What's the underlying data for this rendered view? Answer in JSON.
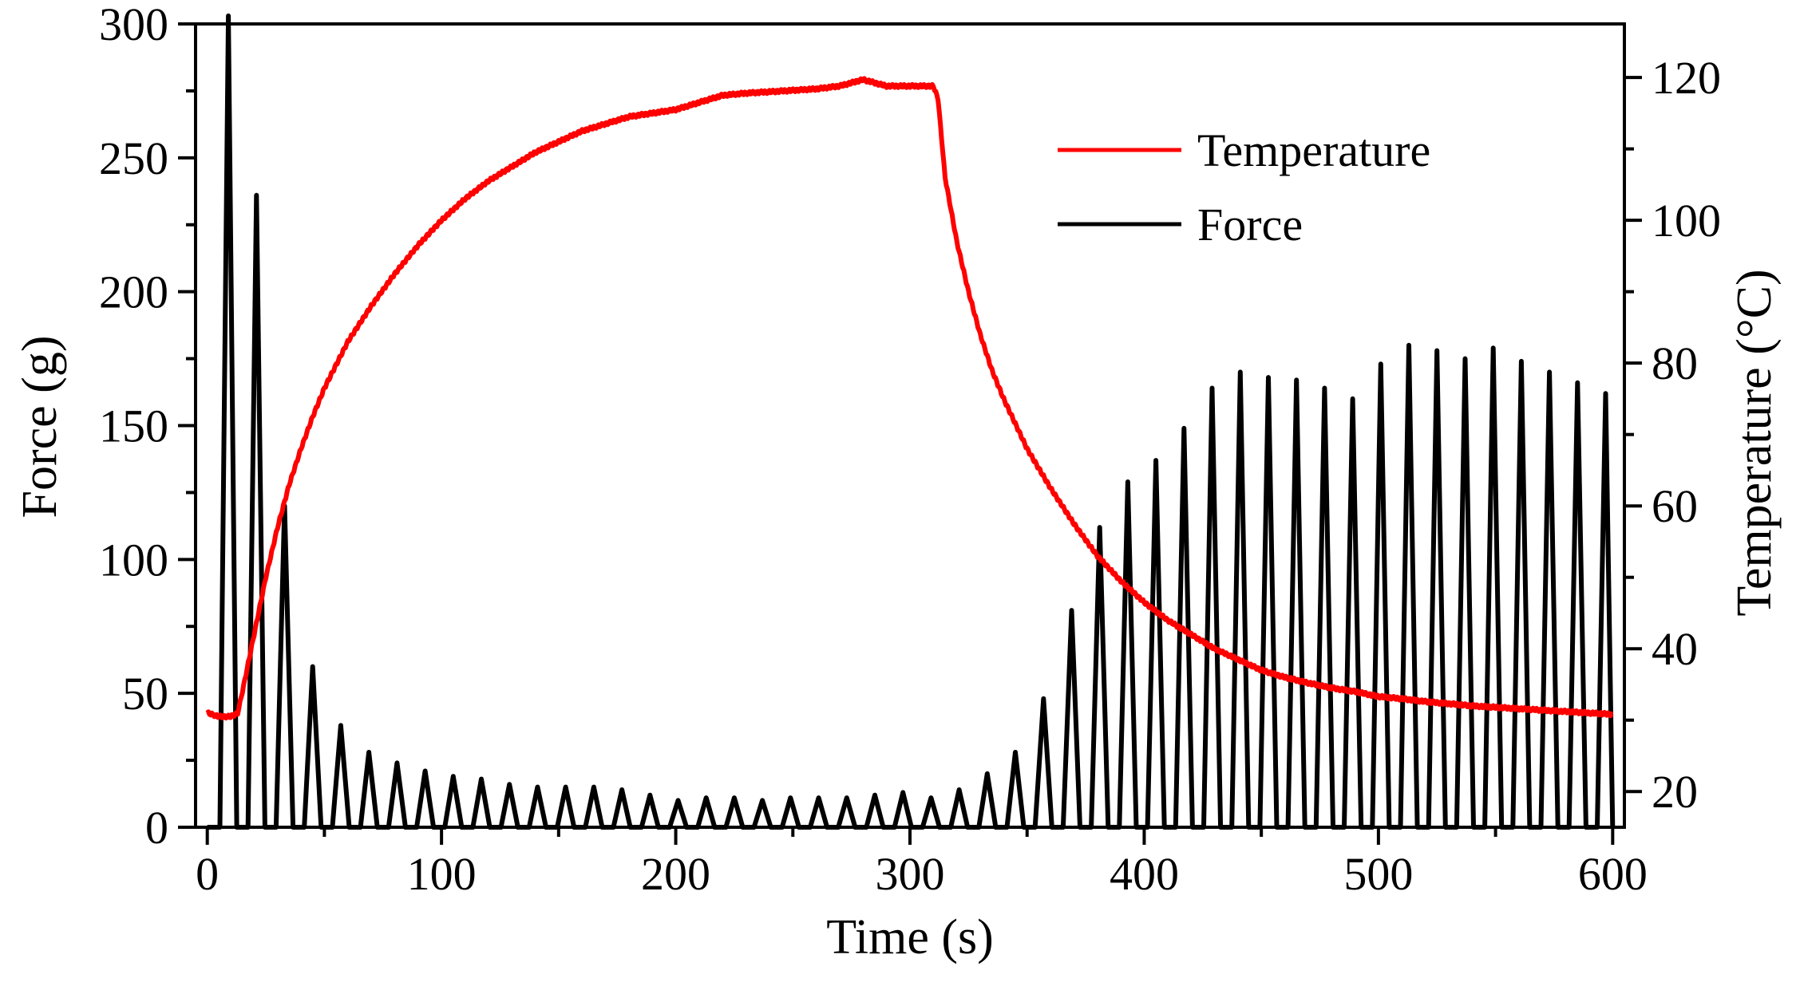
{
  "chart_data": {
    "type": "line",
    "title": "",
    "xlabel": "Time (s)",
    "ylabel_left": "Force (g)",
    "ylabel_right": "Temperature (°C)",
    "xlim": [
      -5,
      605
    ],
    "ylim_left": [
      0,
      300
    ],
    "ylim_right": [
      15,
      127.5
    ],
    "x_ticks": [
      0,
      100,
      200,
      300,
      400,
      500,
      600
    ],
    "x_tick_labels": [
      "0",
      "100",
      "200",
      "300",
      "400",
      "500",
      "600"
    ],
    "y_left_ticks": [
      0,
      50,
      100,
      150,
      200,
      250,
      300
    ],
    "y_left_tick_labels": [
      "0",
      "50",
      "100",
      "150",
      "200",
      "250",
      "300"
    ],
    "y_right_ticks": [
      20,
      40,
      60,
      80,
      100,
      120
    ],
    "y_right_tick_labels": [
      "20",
      "40",
      "60",
      "80",
      "100",
      "120"
    ],
    "grid": false,
    "legend": {
      "position": "top-right",
      "entries": [
        "Temperature",
        "Force"
      ]
    },
    "series": [
      {
        "name": "Temperature",
        "axis": "right",
        "color": "#ff0000",
        "x": [
          0,
          5,
          10,
          13,
          15,
          20,
          25,
          30,
          35,
          40,
          45,
          50,
          60,
          70,
          80,
          90,
          100,
          110,
          120,
          130,
          140,
          150,
          160,
          170,
          180,
          190,
          200,
          210,
          220,
          230,
          240,
          250,
          260,
          270,
          280,
          290,
          300,
          310,
          312,
          315,
          320,
          325,
          330,
          335,
          340,
          350,
          360,
          370,
          380,
          390,
          400,
          410,
          420,
          430,
          440,
          450,
          460,
          470,
          480,
          490,
          500,
          510,
          520,
          530,
          540,
          550,
          560,
          570,
          580,
          590,
          600
        ],
        "y": [
          31,
          30.5,
          30.5,
          31,
          34,
          42,
          50,
          57,
          63,
          68,
          72.5,
          76.5,
          83,
          88,
          92.5,
          96.5,
          100,
          103,
          105.5,
          107.5,
          109.5,
          111,
          112.5,
          113.5,
          114.5,
          115,
          115.5,
          116.5,
          117.5,
          117.8,
          118,
          118.2,
          118.4,
          118.8,
          119.7,
          118.8,
          118.8,
          118.8,
          117,
          106,
          97,
          90,
          84,
          79,
          75,
          68,
          62.5,
          57.5,
          53,
          49.5,
          46.5,
          44,
          42,
          40,
          38.5,
          37,
          36,
          35.2,
          34.5,
          34,
          33.3,
          33,
          32.6,
          32.3,
          32,
          31.8,
          31.6,
          31.4,
          31.2,
          31,
          30.8
        ]
      },
      {
        "name": "Force",
        "axis": "left",
        "color": "#000000",
        "cycle_period_s": 12,
        "peak_times": [
          9,
          21,
          33,
          45,
          57,
          69,
          81,
          93,
          105,
          117,
          129,
          141,
          153,
          165,
          177,
          189,
          201,
          213,
          225,
          237,
          249,
          261,
          273,
          285,
          297,
          309,
          321,
          333,
          345,
          357,
          369,
          381,
          393,
          405,
          417,
          429,
          441,
          453,
          465,
          477,
          489,
          501,
          513,
          525,
          537,
          549,
          561,
          573,
          585,
          597
        ],
        "peak_values": [
          303,
          236,
          120,
          60,
          38,
          28,
          24,
          21,
          19,
          18,
          16,
          15,
          15,
          15,
          14,
          12,
          10,
          11,
          11,
          10,
          11,
          11,
          11,
          12,
          13,
          11,
          14,
          20,
          28,
          48,
          81,
          112,
          129,
          137,
          149,
          164,
          170,
          168,
          167,
          164,
          160,
          173,
          180,
          178,
          175,
          179,
          174,
          170,
          166,
          162
        ]
      }
    ]
  }
}
